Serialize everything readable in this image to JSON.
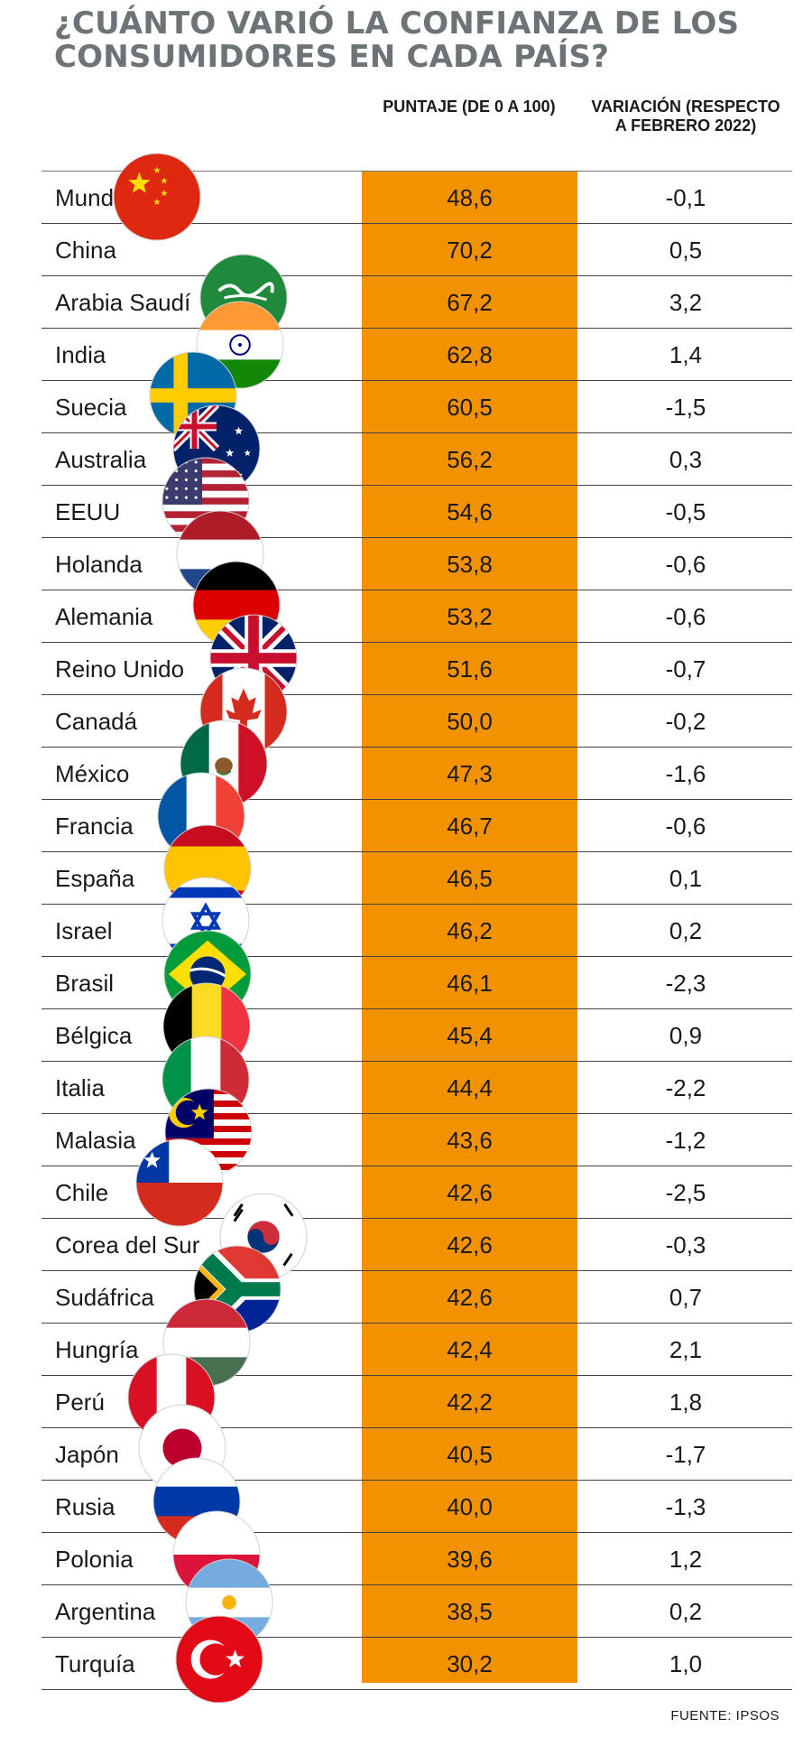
{
  "title": "¿CUÁNTO VARIÓ LA CONFIANZA DE LOS CONSUMIDORES EN CADA PAÍS?",
  "headers": {
    "score": "PUNTAJE (DE 0 A 100)",
    "variation": "VARIACIÓN (RESPECTO A FEBRERO 2022)"
  },
  "source": "FUENTE: IPSOS",
  "colors": {
    "score_column": "#f39200",
    "title": "#6d7478"
  },
  "chart_data": {
    "type": "table",
    "title": "¿CUÁNTO VARIÓ LA CONFIANZA DE LOS CONSUMIDORES EN CADA PAÍS?",
    "columns": [
      "",
      "PUNTAJE (DE 0 A 100)",
      "VARIACIÓN (RESPECTO A FEBRERO 2022)"
    ],
    "rows": [
      {
        "country": "Mundo",
        "score": "48,6",
        "variation": "-0,1",
        "flag": ""
      },
      {
        "country": "China",
        "score": "70,2",
        "variation": "0,5",
        "flag": "china-flag-icon"
      },
      {
        "country": "Arabia Saudí",
        "score": "67,2",
        "variation": "3,2",
        "flag": "saudi-arabia-flag-icon"
      },
      {
        "country": "India",
        "score": "62,8",
        "variation": "1,4",
        "flag": "india-flag-icon"
      },
      {
        "country": "Suecia",
        "score": "60,5",
        "variation": "-1,5",
        "flag": "sweden-flag-icon"
      },
      {
        "country": "Australia",
        "score": "56,2",
        "variation": "0,3",
        "flag": "australia-flag-icon"
      },
      {
        "country": "EEUU",
        "score": "54,6",
        "variation": "-0,5",
        "flag": "usa-flag-icon"
      },
      {
        "country": "Holanda",
        "score": "53,8",
        "variation": "-0,6",
        "flag": "netherlands-flag-icon"
      },
      {
        "country": "Alemania",
        "score": "53,2",
        "variation": "-0,6",
        "flag": "germany-flag-icon"
      },
      {
        "country": "Reino Unido",
        "score": "51,6",
        "variation": "-0,7",
        "flag": "uk-flag-icon"
      },
      {
        "country": "Canadá",
        "score": "50,0",
        "variation": "-0,2",
        "flag": "canada-flag-icon"
      },
      {
        "country": "México",
        "score": "47,3",
        "variation": "-1,6",
        "flag": "mexico-flag-icon"
      },
      {
        "country": "Francia",
        "score": "46,7",
        "variation": "-0,6",
        "flag": "france-flag-icon"
      },
      {
        "country": "España",
        "score": "46,5",
        "variation": "0,1",
        "flag": "spain-flag-icon"
      },
      {
        "country": "Israel",
        "score": "46,2",
        "variation": "0,2",
        "flag": "israel-flag-icon"
      },
      {
        "country": "Brasil",
        "score": "46,1",
        "variation": "-2,3",
        "flag": "brazil-flag-icon"
      },
      {
        "country": "Bélgica",
        "score": "45,4",
        "variation": "0,9",
        "flag": "belgium-flag-icon"
      },
      {
        "country": "Italia",
        "score": "44,4",
        "variation": "-2,2",
        "flag": "italy-flag-icon"
      },
      {
        "country": "Malasia",
        "score": "43,6",
        "variation": "-1,2",
        "flag": "malaysia-flag-icon"
      },
      {
        "country": "Chile",
        "score": "42,6",
        "variation": "-2,5",
        "flag": "chile-flag-icon"
      },
      {
        "country": "Corea del Sur",
        "score": "42,6",
        "variation": "-0,3",
        "flag": "south-korea-flag-icon"
      },
      {
        "country": "Sudáfrica",
        "score": "42,6",
        "variation": "0,7",
        "flag": "south-africa-flag-icon"
      },
      {
        "country": "Hungría",
        "score": "42,4",
        "variation": "2,1",
        "flag": "hungary-flag-icon"
      },
      {
        "country": "Perú",
        "score": "42,2",
        "variation": "1,8",
        "flag": "peru-flag-icon"
      },
      {
        "country": "Japón",
        "score": "40,5",
        "variation": "-1,7",
        "flag": "japan-flag-icon"
      },
      {
        "country": "Rusia",
        "score": "40,0",
        "variation": "-1,3",
        "flag": "russia-flag-icon"
      },
      {
        "country": "Polonia",
        "score": "39,6",
        "variation": "1,2",
        "flag": "poland-flag-icon"
      },
      {
        "country": "Argentina",
        "score": "38,5",
        "variation": "0,2",
        "flag": "argentina-flag-icon"
      },
      {
        "country": "Turquía",
        "score": "30,2",
        "variation": "1,0",
        "flag": "turkey-flag-icon"
      }
    ]
  }
}
